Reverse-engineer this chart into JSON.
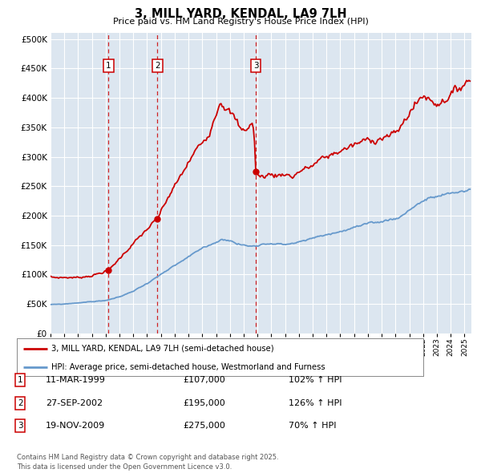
{
  "title": "3, MILL YARD, KENDAL, LA9 7LH",
  "subtitle": "Price paid vs. HM Land Registry's House Price Index (HPI)",
  "legend_line1": "3, MILL YARD, KENDAL, LA9 7LH (semi-detached house)",
  "legend_line2": "HPI: Average price, semi-detached house, Westmorland and Furness",
  "footer": "Contains HM Land Registry data © Crown copyright and database right 2025.\nThis data is licensed under the Open Government Licence v3.0.",
  "transactions": [
    {
      "num": 1,
      "date": "11-MAR-1999",
      "price": "£107,000",
      "hpi": "102% ↑ HPI",
      "year": 1999.2
    },
    {
      "num": 2,
      "date": "27-SEP-2002",
      "price": "£195,000",
      "hpi": "126% ↑ HPI",
      "year": 2002.75
    },
    {
      "num": 3,
      "date": "19-NOV-2009",
      "price": "£275,000",
      "hpi": "70% ↑ HPI",
      "year": 2009.88
    }
  ],
  "transaction_values": [
    107000,
    195000,
    275000
  ],
  "ylim": [
    0,
    510000
  ],
  "xlim_start": 1995,
  "xlim_end": 2025.5,
  "red_color": "#cc0000",
  "blue_color": "#6699cc",
  "plot_bg": "#dce6f0",
  "bg_color": "#ffffff",
  "grid_color": "#ffffff",
  "yticks": [
    0,
    50000,
    100000,
    150000,
    200000,
    250000,
    300000,
    350000,
    400000,
    450000,
    500000
  ],
  "red_keypoints": [
    [
      1995.0,
      95000
    ],
    [
      1997.0,
      95000
    ],
    [
      1998.0,
      98000
    ],
    [
      1999.2,
      107000
    ],
    [
      2000.5,
      140000
    ],
    [
      2001.5,
      165000
    ],
    [
      2002.75,
      195000
    ],
    [
      2003.5,
      230000
    ],
    [
      2004.5,
      270000
    ],
    [
      2005.5,
      310000
    ],
    [
      2006.5,
      340000
    ],
    [
      2007.3,
      395000
    ],
    [
      2007.8,
      380000
    ],
    [
      2008.2,
      370000
    ],
    [
      2008.5,
      360000
    ],
    [
      2008.8,
      345000
    ],
    [
      2009.4,
      350000
    ],
    [
      2009.6,
      360000
    ],
    [
      2009.75,
      340000
    ],
    [
      2009.88,
      275000
    ],
    [
      2010.2,
      265000
    ],
    [
      2010.8,
      270000
    ],
    [
      2011.5,
      268000
    ],
    [
      2012.0,
      272000
    ],
    [
      2012.5,
      265000
    ],
    [
      2013.0,
      275000
    ],
    [
      2013.5,
      280000
    ],
    [
      2014.0,
      285000
    ],
    [
      2014.5,
      295000
    ],
    [
      2015.0,
      300000
    ],
    [
      2015.5,
      305000
    ],
    [
      2016.0,
      310000
    ],
    [
      2016.5,
      315000
    ],
    [
      2017.0,
      320000
    ],
    [
      2017.5,
      325000
    ],
    [
      2018.0,
      330000
    ],
    [
      2018.5,
      328000
    ],
    [
      2019.0,
      332000
    ],
    [
      2019.5,
      335000
    ],
    [
      2020.0,
      340000
    ],
    [
      2020.5,
      355000
    ],
    [
      2021.0,
      375000
    ],
    [
      2021.5,
      390000
    ],
    [
      2022.0,
      405000
    ],
    [
      2022.3,
      400000
    ],
    [
      2022.6,
      395000
    ],
    [
      2023.0,
      390000
    ],
    [
      2023.5,
      395000
    ],
    [
      2024.0,
      405000
    ],
    [
      2024.5,
      415000
    ],
    [
      2025.0,
      425000
    ],
    [
      2025.4,
      430000
    ]
  ],
  "hpi_keypoints": [
    [
      1995.0,
      49000
    ],
    [
      1996.0,
      50000
    ],
    [
      1997.0,
      52000
    ],
    [
      1998.0,
      54000
    ],
    [
      1999.0,
      56000
    ],
    [
      2000.0,
      62000
    ],
    [
      2001.0,
      72000
    ],
    [
      2002.0,
      85000
    ],
    [
      2003.0,
      100000
    ],
    [
      2004.0,
      115000
    ],
    [
      2005.0,
      130000
    ],
    [
      2006.0,
      145000
    ],
    [
      2007.0,
      155000
    ],
    [
      2007.5,
      160000
    ],
    [
      2008.0,
      158000
    ],
    [
      2008.5,
      152000
    ],
    [
      2009.0,
      150000
    ],
    [
      2009.5,
      148000
    ],
    [
      2010.0,
      150000
    ],
    [
      2010.5,
      152000
    ],
    [
      2011.0,
      153000
    ],
    [
      2011.5,
      152000
    ],
    [
      2012.0,
      151000
    ],
    [
      2012.5,
      153000
    ],
    [
      2013.0,
      155000
    ],
    [
      2013.5,
      158000
    ],
    [
      2014.0,
      162000
    ],
    [
      2014.5,
      165000
    ],
    [
      2015.0,
      168000
    ],
    [
      2015.5,
      170000
    ],
    [
      2016.0,
      173000
    ],
    [
      2016.5,
      176000
    ],
    [
      2017.0,
      180000
    ],
    [
      2017.5,
      183000
    ],
    [
      2018.0,
      186000
    ],
    [
      2018.5,
      188000
    ],
    [
      2019.0,
      190000
    ],
    [
      2019.5,
      193000
    ],
    [
      2020.0,
      195000
    ],
    [
      2020.5,
      200000
    ],
    [
      2021.0,
      210000
    ],
    [
      2021.5,
      218000
    ],
    [
      2022.0,
      225000
    ],
    [
      2022.5,
      230000
    ],
    [
      2023.0,
      232000
    ],
    [
      2023.5,
      235000
    ],
    [
      2024.0,
      238000
    ],
    [
      2024.5,
      240000
    ],
    [
      2025.0,
      242000
    ],
    [
      2025.4,
      244000
    ]
  ]
}
